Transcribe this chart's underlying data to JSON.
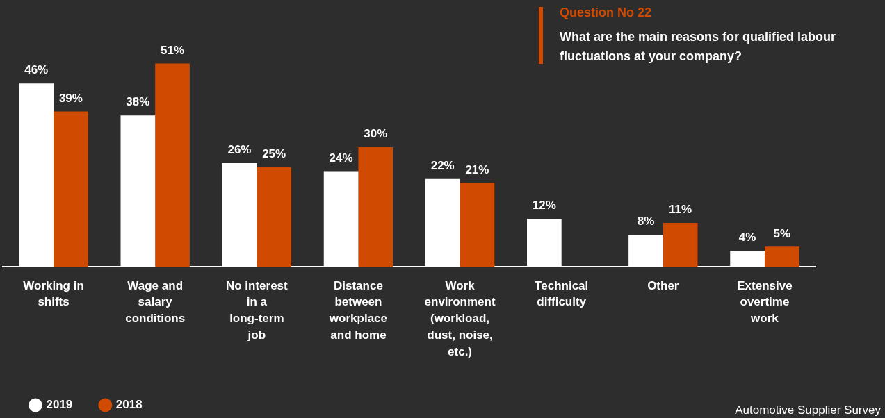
{
  "chart_data": {
    "type": "bar",
    "title": "Question No 22",
    "subtitle": "What are the main reasons for qualified labour fluctuations at your company?",
    "categories": [
      "Working in shifts",
      "Wage and salary conditions",
      "No interest in a long-term job",
      "Distance between workplace and home",
      "Work environment (workload, dust, noise, etc.)",
      "Technical difficulty",
      "Other",
      "Extensive overtime work"
    ],
    "series": [
      {
        "name": "2019",
        "color": "#ffffff",
        "values": [
          46,
          38,
          26,
          24,
          22,
          12,
          8,
          4
        ],
        "value_labels": [
          "46%",
          "38%",
          "26%",
          "24%",
          "22%",
          "12%",
          "8%",
          "4%"
        ]
      },
      {
        "name": "2018",
        "color": "#d04a02",
        "values": [
          39,
          51,
          25,
          30,
          21,
          null,
          11,
          5
        ],
        "value_labels": [
          "39%",
          "51%",
          "25%",
          "30%",
          "21%",
          null,
          "11%",
          "5%"
        ]
      }
    ],
    "legend": "bottom left",
    "grid": false,
    "tick_labels": "x",
    "annotations": [
      "Automotive Supplier Survey"
    ]
  }
}
